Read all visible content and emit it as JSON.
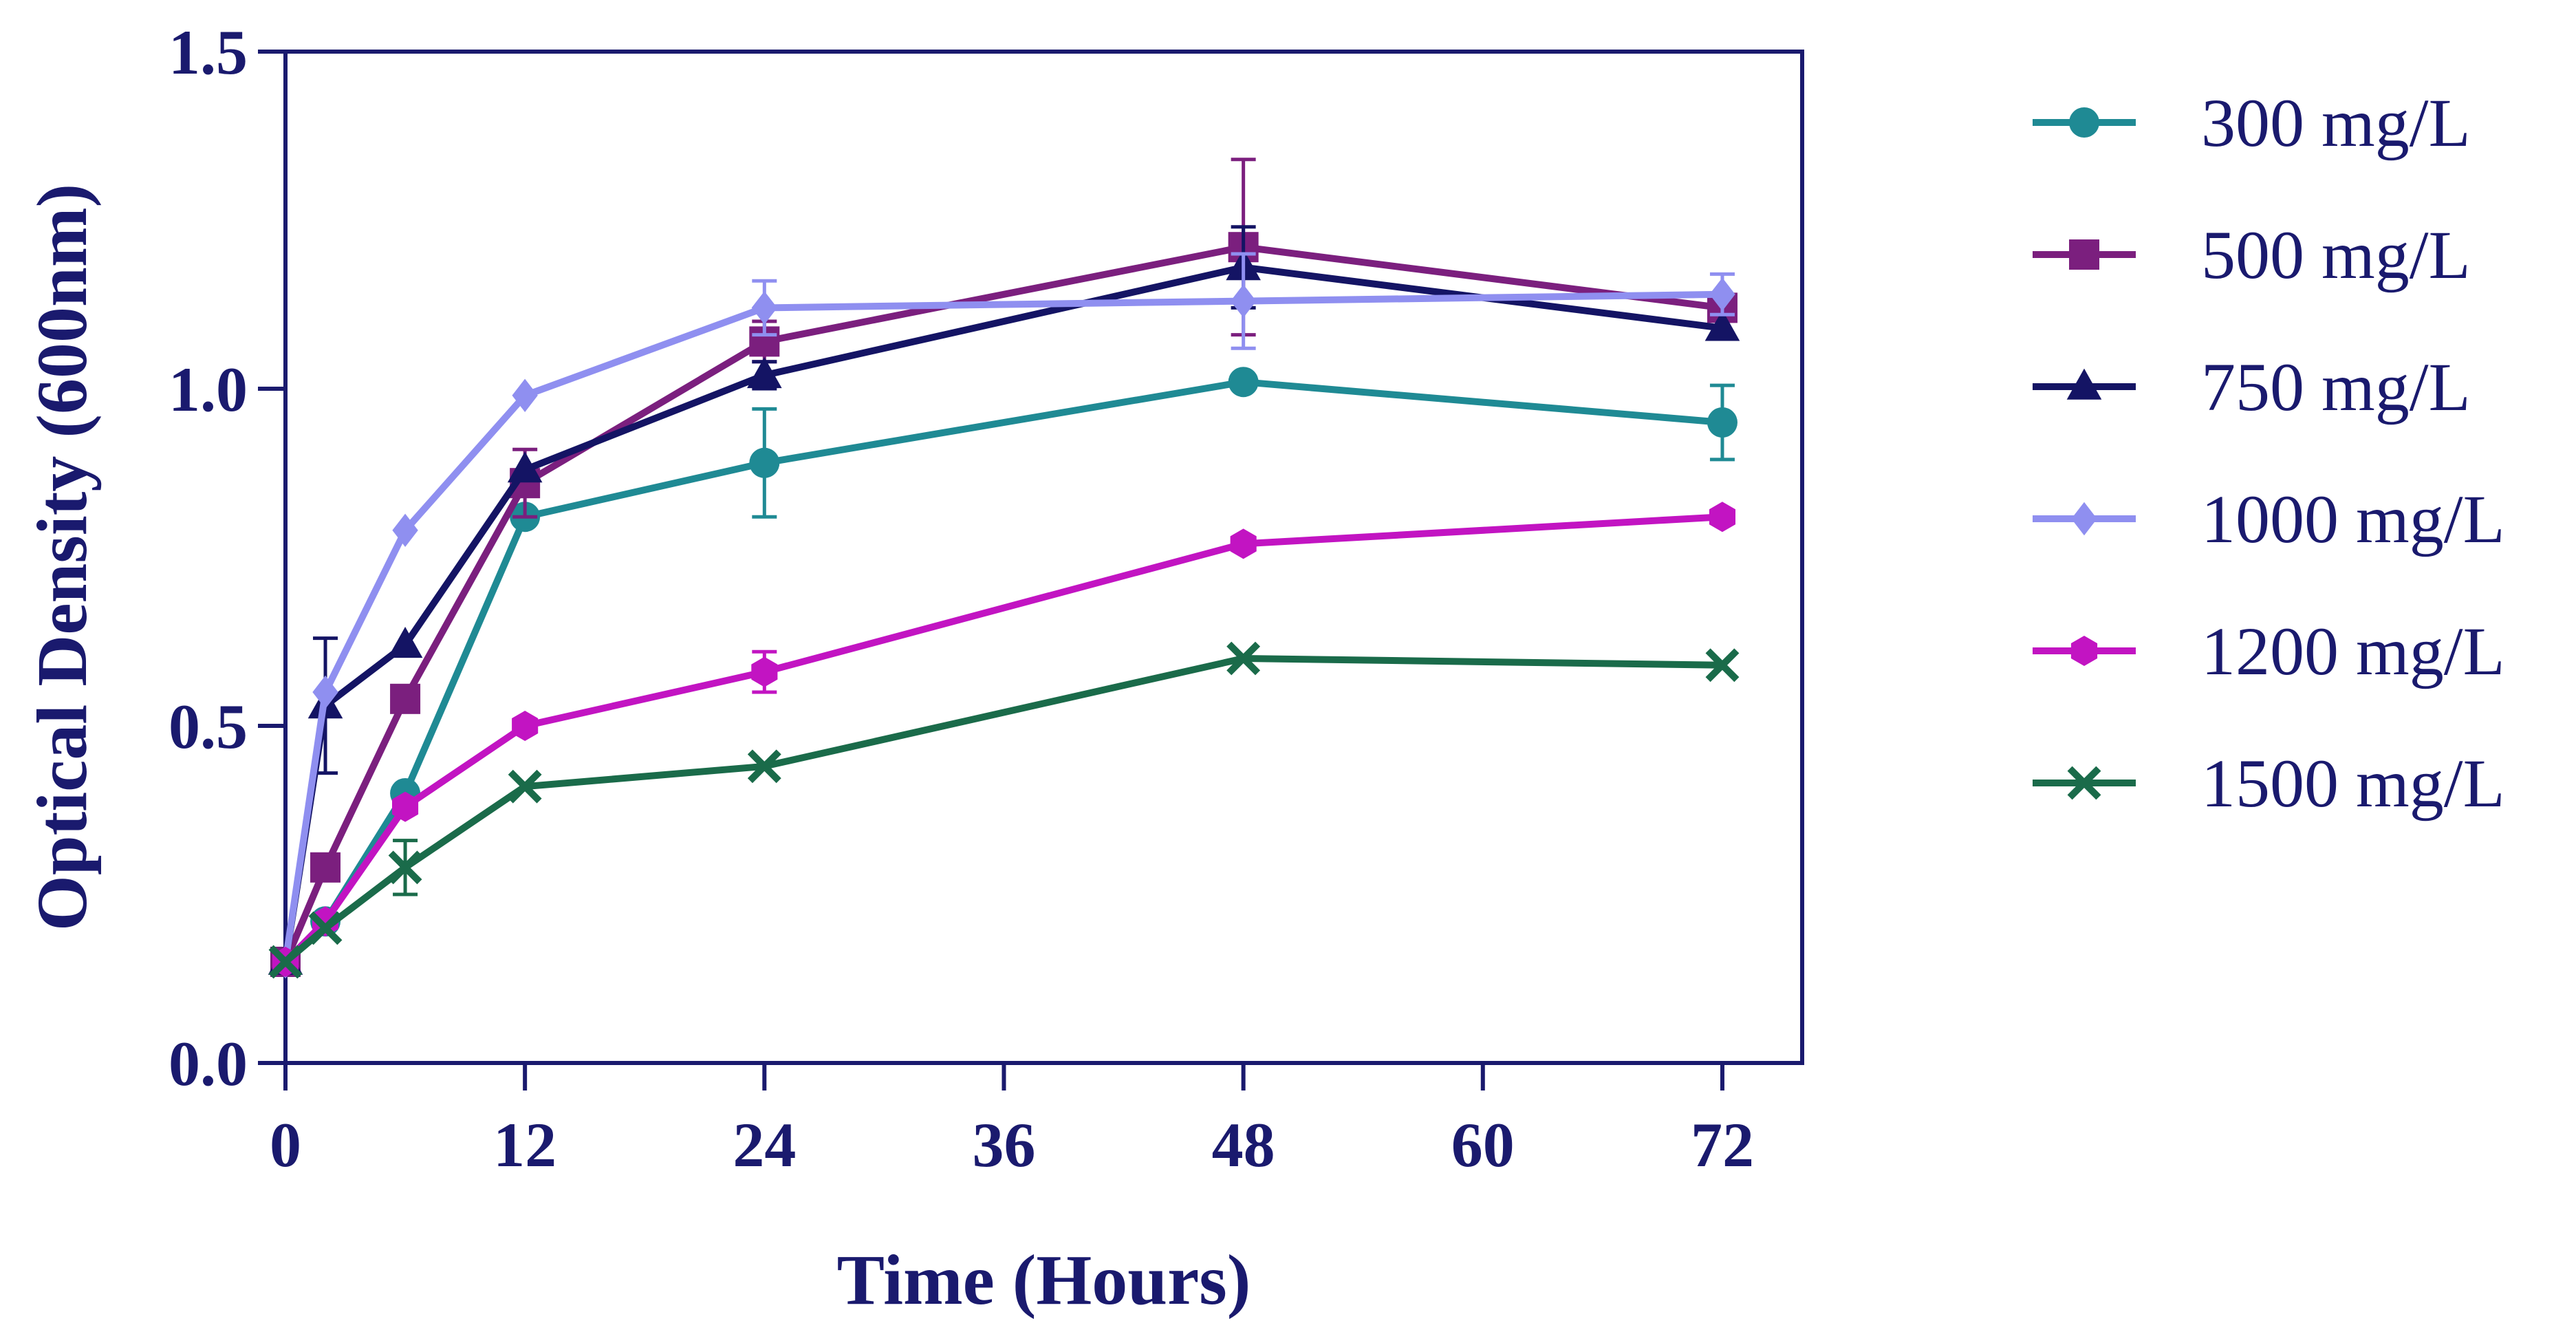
{
  "chart_data": {
    "type": "line",
    "title": "",
    "xlabel": "Time (Hours)",
    "ylabel": "Optical Density (600nm)",
    "xlim": [
      0,
      76
    ],
    "ylim": [
      0,
      1.5
    ],
    "xticks": [
      0,
      12,
      24,
      36,
      48,
      60,
      72
    ],
    "xtick_labels": [
      "0",
      "12",
      "24",
      "36",
      "48",
      "60",
      "72"
    ],
    "yticks": [
      0,
      0.5,
      1.0,
      1.5
    ],
    "ytick_labels": [
      "0.0",
      "0.5",
      "1.0",
      "1.5"
    ],
    "grid": false,
    "legend_position": "right",
    "x": [
      0,
      2,
      6,
      12,
      24,
      48,
      72
    ],
    "series": [
      {
        "name": "300 mg/L",
        "color": "#1f8a94",
        "marker": "circle",
        "values": [
          0.15,
          0.21,
          0.4,
          0.81,
          0.89,
          1.01,
          0.95
        ],
        "errors": [
          0,
          0,
          0,
          0,
          0.08,
          0,
          0.055
        ]
      },
      {
        "name": "500 mg/L",
        "color": "#7b1f7e",
        "marker": "square",
        "values": [
          0.15,
          0.29,
          0.54,
          0.86,
          1.07,
          1.21,
          1.12
        ],
        "errors": [
          0,
          0,
          0,
          0.05,
          0.03,
          0.13,
          0
        ]
      },
      {
        "name": "750 mg/L",
        "color": "#141464",
        "marker": "triangle",
        "values": [
          0.15,
          0.53,
          0.62,
          0.88,
          1.02,
          1.18,
          1.09
        ],
        "errors": [
          0,
          0.1,
          0,
          0,
          0.02,
          0.06,
          0
        ]
      },
      {
        "name": "1000 mg/L",
        "color": "#8f8ff0",
        "marker": "diamond",
        "values": [
          0.15,
          0.55,
          0.79,
          0.99,
          1.12,
          1.13,
          1.14
        ],
        "errors": [
          0,
          0,
          0,
          0,
          0.04,
          0.07,
          0.03
        ]
      },
      {
        "name": "1200 mg/L",
        "color": "#c214c2",
        "marker": "hexagon",
        "values": [
          0.15,
          0.21,
          0.38,
          0.5,
          0.58,
          0.77,
          0.81
        ],
        "errors": [
          0,
          0,
          0,
          0,
          0.03,
          0,
          0
        ]
      },
      {
        "name": "1500 mg/L",
        "color": "#1a6b4a",
        "marker": "x",
        "values": [
          0.15,
          0.2,
          0.29,
          0.41,
          0.44,
          0.6,
          0.59
        ],
        "errors": [
          0,
          0,
          0.04,
          0,
          0,
          0,
          0
        ]
      }
    ]
  }
}
